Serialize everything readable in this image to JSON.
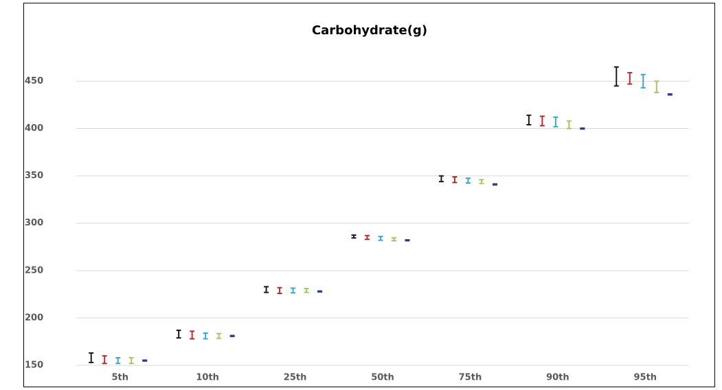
{
  "chart_data": {
    "type": "errorbar",
    "title": "Carbohydrate(g)",
    "categories": [
      "5th",
      "10th",
      "25th",
      "50th",
      "75th",
      "90th",
      "95th"
    ],
    "series": [
      {
        "color": "#1a1a1a",
        "values": [
          158,
          183,
          230,
          286,
          347,
          409,
          455
        ],
        "errors": [
          5,
          4,
          3,
          1.5,
          3,
          5,
          10
        ]
      },
      {
        "color": "#c0282d",
        "values": [
          156,
          182,
          229,
          285,
          346,
          408,
          453
        ],
        "errors": [
          4,
          4,
          3,
          2,
          3,
          5,
          6
        ]
      },
      {
        "color": "#3aa6d9",
        "values": [
          155,
          181,
          229,
          284,
          345,
          407,
          450
        ],
        "errors": [
          3,
          3,
          2.5,
          2,
          2.5,
          5,
          7
        ]
      },
      {
        "color": "#a4c85f",
        "values": [
          155,
          181,
          229,
          283,
          344,
          404,
          444
        ],
        "errors": [
          3,
          2.5,
          2,
          1.5,
          2,
          4,
          6
        ]
      },
      {
        "color": "#2e3a8c",
        "values": [
          155,
          181,
          228,
          282,
          341,
          400,
          436
        ],
        "errors": [
          0.5,
          0.5,
          0.5,
          0.5,
          0.5,
          0.5,
          0.5
        ]
      }
    ],
    "ylim": [
      150,
      480
    ],
    "yticks": [
      150,
      200,
      250,
      300,
      350,
      400,
      450
    ],
    "grid": true
  }
}
